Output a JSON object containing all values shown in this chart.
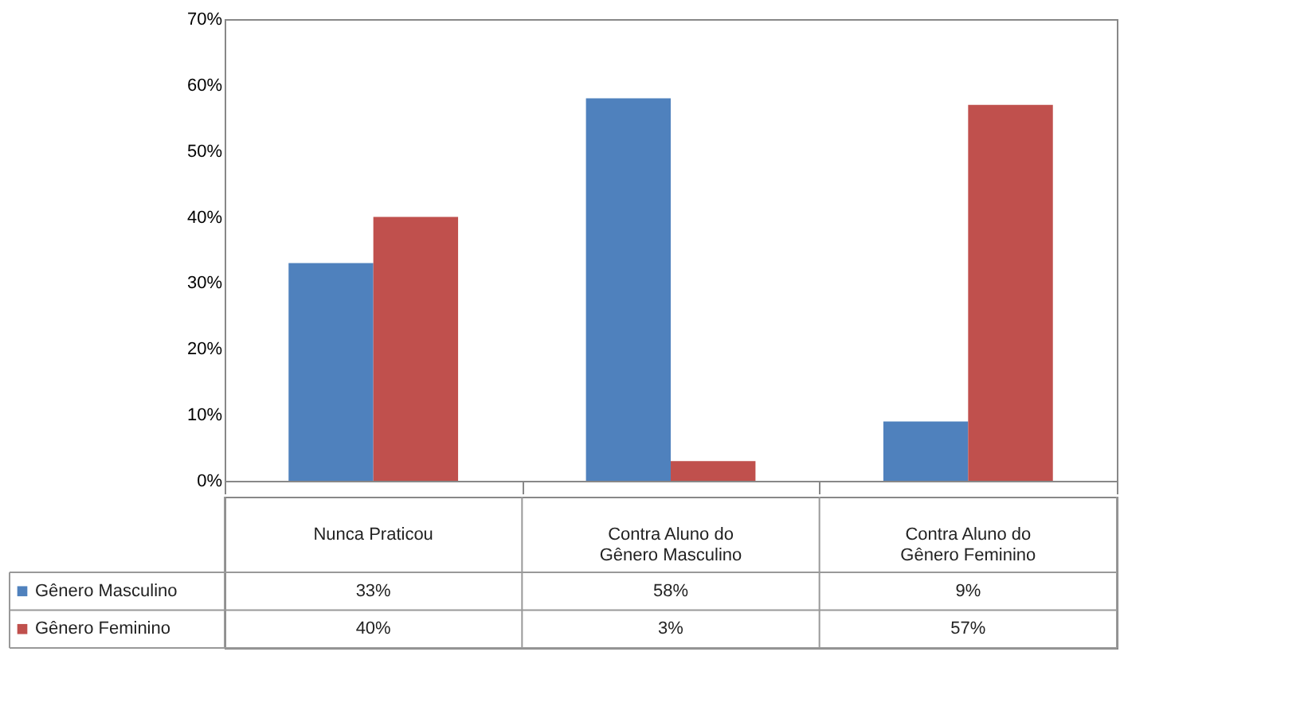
{
  "chart_data": {
    "type": "bar",
    "categories": [
      "Nunca Praticou",
      "Contra Aluno do Gênero Masculino",
      "Contra Aluno do Gênero Feminino"
    ],
    "series": [
      {
        "name": "Gênero Masculino",
        "color": "#4f81bd",
        "values": [
          33,
          58,
          9
        ],
        "value_labels": [
          "33%",
          "58%",
          "9%"
        ]
      },
      {
        "name": "Gênero Feminino",
        "color": "#c0504d",
        "values": [
          40,
          3,
          57
        ],
        "value_labels": [
          "40%",
          "3%",
          "57%"
        ]
      }
    ],
    "ylim": [
      0,
      70
    ],
    "yticks": [
      {
        "value": 0,
        "label": "0%"
      },
      {
        "value": 10,
        "label": "10%"
      },
      {
        "value": 20,
        "label": "20%"
      },
      {
        "value": 30,
        "label": "30%"
      },
      {
        "value": 40,
        "label": "40%"
      },
      {
        "value": 50,
        "label": "50%"
      },
      {
        "value": 60,
        "label": "60%"
      },
      {
        "value": 70,
        "label": "70%"
      }
    ],
    "grid": false,
    "legend": "bottom left"
  }
}
